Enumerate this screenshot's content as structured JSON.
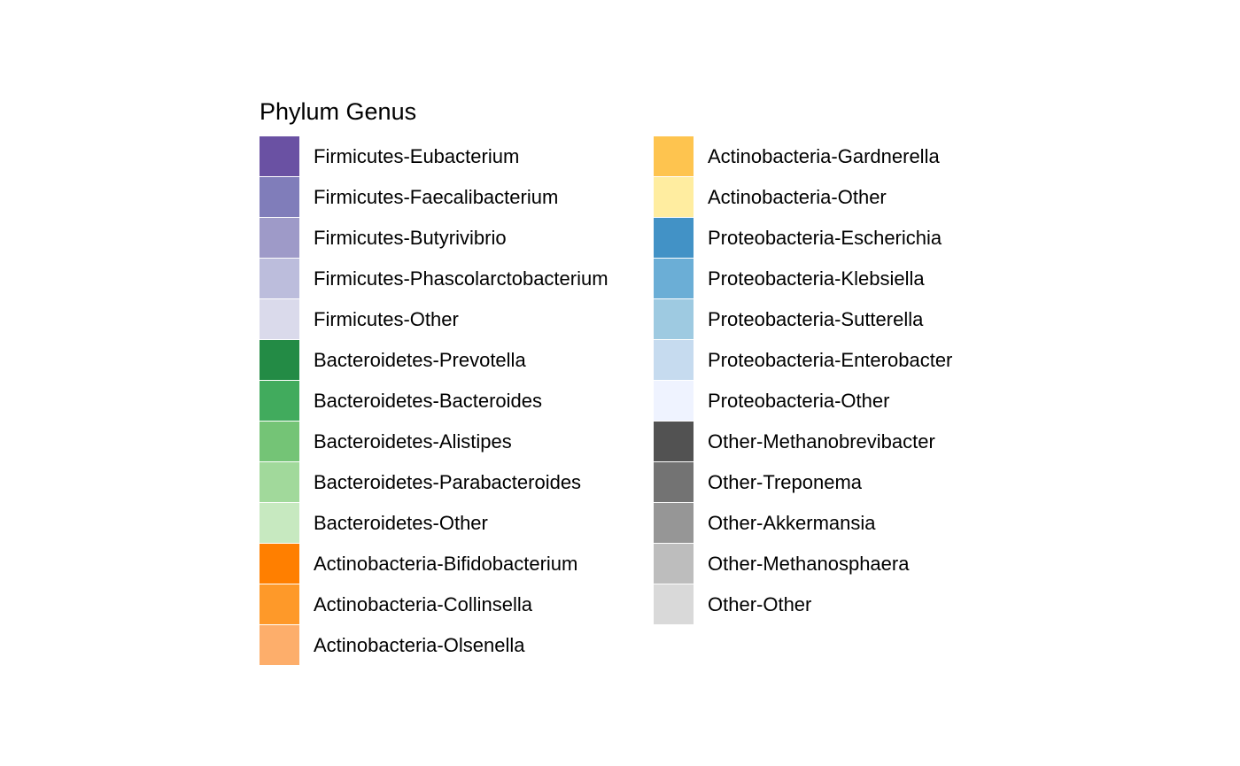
{
  "chart_data": {
    "type": "legend",
    "title": "Phylum Genus",
    "columns": [
      [
        {
          "label": "Firmicutes-Eubacterium",
          "color": "#6a51a3"
        },
        {
          "label": "Firmicutes-Faecalibacterium",
          "color": "#807dba"
        },
        {
          "label": "Firmicutes-Butyrivibrio",
          "color": "#9e9ac8"
        },
        {
          "label": "Firmicutes-Phascolarctobacterium",
          "color": "#bcbddc"
        },
        {
          "label": "Firmicutes-Other",
          "color": "#dadaeb"
        },
        {
          "label": "Bacteroidetes-Prevotella",
          "color": "#238b45"
        },
        {
          "label": "Bacteroidetes-Bacteroides",
          "color": "#41ab5d"
        },
        {
          "label": "Bacteroidetes-Alistipes",
          "color": "#74c476"
        },
        {
          "label": "Bacteroidetes-Parabacteroides",
          "color": "#a1d99b"
        },
        {
          "label": "Bacteroidetes-Other",
          "color": "#c7e9c0"
        },
        {
          "label": "Actinobacteria-Bifidobacterium",
          "color": "#ff7f00"
        },
        {
          "label": "Actinobacteria-Collinsella",
          "color": "#fe9929"
        },
        {
          "label": "Actinobacteria-Olsenella",
          "color": "#fdae6b"
        }
      ],
      [
        {
          "label": "Actinobacteria-Gardnerella",
          "color": "#fec44f"
        },
        {
          "label": "Actinobacteria-Other",
          "color": "#ffeda0"
        },
        {
          "label": "Proteobacteria-Escherichia",
          "color": "#4292c6"
        },
        {
          "label": "Proteobacteria-Klebsiella",
          "color": "#6baed6"
        },
        {
          "label": "Proteobacteria-Sutterella",
          "color": "#9ecae1"
        },
        {
          "label": "Proteobacteria-Enterobacter",
          "color": "#c6dbef"
        },
        {
          "label": "Proteobacteria-Other",
          "color": "#eff3ff"
        },
        {
          "label": "Other-Methanobrevibacter",
          "color": "#525252"
        },
        {
          "label": "Other-Treponema",
          "color": "#737373"
        },
        {
          "label": "Other-Akkermansia",
          "color": "#969696"
        },
        {
          "label": "Other-Methanosphaera",
          "color": "#bdbdbd"
        },
        {
          "label": "Other-Other",
          "color": "#d9d9d9"
        }
      ]
    ]
  }
}
